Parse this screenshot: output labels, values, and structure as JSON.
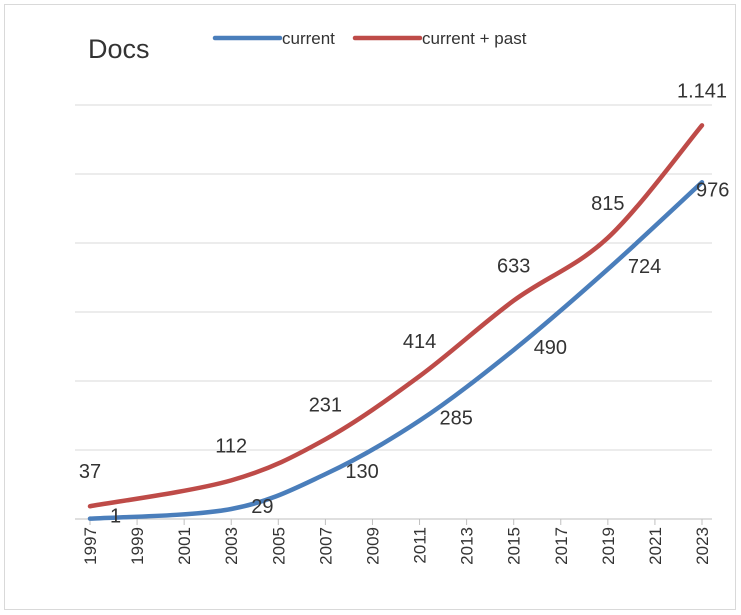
{
  "chart_data": {
    "type": "line",
    "title": "Docs",
    "x": [
      1997,
      2003,
      2007,
      2011,
      2015,
      2019,
      2023
    ],
    "series": [
      {
        "name": "current",
        "color": "#4a7ebb",
        "values": [
          1,
          29,
          130,
          285,
          490,
          724,
          976
        ]
      },
      {
        "name": "current + past",
        "color": "#be4b48",
        "values": [
          37,
          112,
          231,
          414,
          633,
          815,
          1141
        ],
        "value_labels": [
          "37",
          "112",
          "231",
          "414",
          "633",
          "815",
          "1.141"
        ]
      }
    ],
    "xlim": [
      1997,
      2023
    ],
    "xticks": [
      1997,
      1999,
      2001,
      2003,
      2005,
      2007,
      2009,
      2011,
      2013,
      2015,
      2017,
      2019,
      2021,
      2023
    ],
    "ylim": [
      0,
      1200
    ],
    "yticks": [
      0,
      200,
      400,
      600,
      800,
      1000,
      1200
    ],
    "grid": true,
    "legend": "top"
  }
}
